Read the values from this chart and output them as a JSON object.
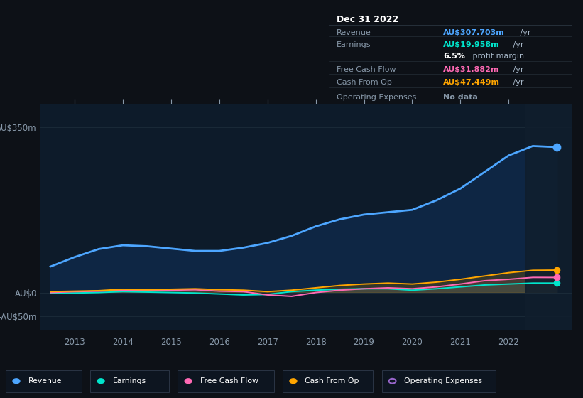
{
  "bg_color": "#0d1117",
  "chart_bg": "#0d1b2a",
  "years": [
    2012.5,
    2013,
    2013.5,
    2014,
    2014.5,
    2015,
    2015.5,
    2016,
    2016.5,
    2017,
    2017.5,
    2018,
    2018.5,
    2019,
    2019.5,
    2020,
    2020.5,
    2021,
    2021.5,
    2022,
    2022.5,
    2023
  ],
  "revenue": [
    55,
    75,
    92,
    100,
    98,
    93,
    88,
    88,
    95,
    105,
    120,
    140,
    155,
    165,
    170,
    175,
    195,
    220,
    255,
    290,
    310,
    307.703
  ],
  "earnings": [
    -2,
    -1,
    0,
    2,
    1,
    0,
    -1,
    -3,
    -5,
    -4,
    2,
    5,
    7,
    8,
    8,
    5,
    8,
    12,
    16,
    18,
    20,
    19.958
  ],
  "free_cash_flow": [
    0,
    2,
    3,
    5,
    4,
    5,
    6,
    3,
    2,
    -5,
    -8,
    0,
    5,
    8,
    10,
    8,
    12,
    18,
    25,
    28,
    32,
    31.882
  ],
  "cash_from_op": [
    2,
    3,
    4,
    7,
    6,
    7,
    8,
    6,
    5,
    2,
    5,
    10,
    15,
    18,
    20,
    18,
    22,
    28,
    35,
    42,
    47,
    47.449
  ],
  "revenue_color": "#4da6ff",
  "earnings_color": "#00e5cc",
  "free_cash_flow_color": "#ff69b4",
  "cash_from_op_color": "#ffa500",
  "operating_expenses_color": "#9966cc",
  "revenue_fill_color": "#0e2644",
  "tooltip_bg": "#080d12",
  "tooltip_border": "#2a3540",
  "x_ticks": [
    2013,
    2014,
    2015,
    2016,
    2017,
    2018,
    2019,
    2020,
    2021,
    2022
  ],
  "y_ticks_labels": [
    "-AU$50m",
    "AU$0",
    "AU$350m"
  ],
  "y_ticks_values": [
    -50,
    0,
    350
  ],
  "ylim": [
    -80,
    400
  ],
  "xlim": [
    2012.3,
    2023.3
  ],
  "grid_color": "#1a2a38",
  "tick_color": "#8899aa",
  "tooltip_title": "Dec 31 2022",
  "tooltip_rows": [
    {
      "label": "Revenue",
      "value": "AU$307.703m",
      "unit": " /yr",
      "value_color": "#4da6ff"
    },
    {
      "label": "Earnings",
      "value": "AU$19.958m",
      "unit": " /yr",
      "value_color": "#00e5cc"
    },
    {
      "label": "",
      "value": "6.5%",
      "unit": " profit margin",
      "value_color": "#ffffff"
    },
    {
      "label": "Free Cash Flow",
      "value": "AU$31.882m",
      "unit": " /yr",
      "value_color": "#ff69b4"
    },
    {
      "label": "Cash From Op",
      "value": "AU$47.449m",
      "unit": " /yr",
      "value_color": "#ffa500"
    },
    {
      "label": "Operating Expenses",
      "value": "No data",
      "unit": "",
      "value_color": "#8899aa"
    }
  ],
  "legend_items": [
    {
      "label": "Revenue",
      "color": "#4da6ff",
      "hollow": false
    },
    {
      "label": "Earnings",
      "color": "#00e5cc",
      "hollow": false
    },
    {
      "label": "Free Cash Flow",
      "color": "#ff69b4",
      "hollow": false
    },
    {
      "label": "Cash From Op",
      "color": "#ffa500",
      "hollow": false
    },
    {
      "label": "Operating Expenses",
      "color": "#9966cc",
      "hollow": true
    }
  ]
}
